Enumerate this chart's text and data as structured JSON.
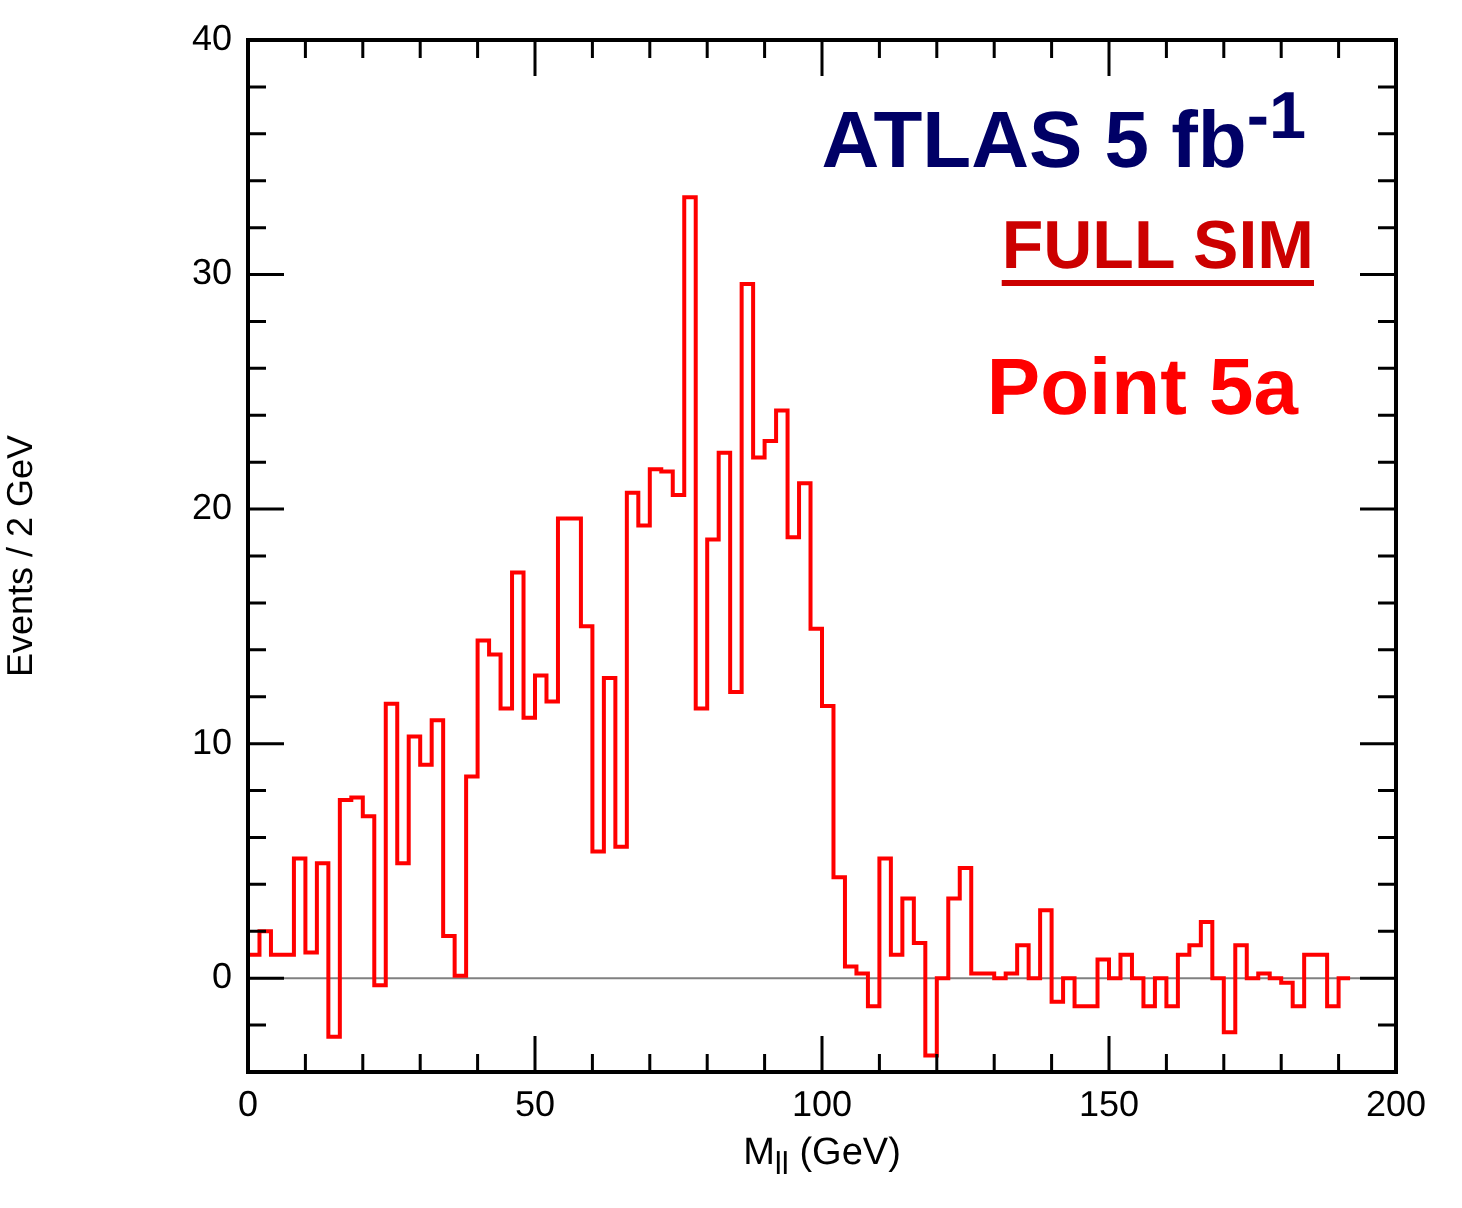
{
  "chart_data": {
    "type": "histogram",
    "xlabel": "M$_{ll}$ (GeV)",
    "ylabel": "Events / 2 GeV",
    "annotations": [
      "ATLAS 5 fb$^{-1}$",
      "FULL SIM",
      "Point 5a"
    ],
    "bins": [
      0,
      2,
      4,
      6,
      8,
      10,
      12,
      14,
      16,
      18,
      20,
      22,
      24,
      26,
      28,
      30,
      32,
      34,
      36,
      38,
      40,
      42,
      44,
      46,
      48,
      50,
      52,
      54,
      56,
      58,
      60,
      62,
      64,
      66,
      68,
      70,
      72,
      74,
      76,
      78,
      80,
      82,
      84,
      86,
      88,
      90,
      92,
      94,
      96,
      98,
      100,
      102,
      104,
      106,
      108,
      110,
      112,
      114,
      116,
      118,
      120,
      122,
      124,
      126,
      128,
      130,
      132,
      134,
      136,
      138,
      140,
      142,
      144,
      146,
      148,
      150,
      152,
      154,
      156,
      158,
      160,
      162,
      164,
      166,
      168,
      170,
      172,
      174,
      176,
      178,
      180,
      182,
      184,
      186,
      188,
      190,
      192
    ],
    "values": [
      1.0,
      2.0,
      1.0,
      1.0,
      5.1,
      1.1,
      4.9,
      -2.5,
      7.6,
      7.7,
      6.9,
      -0.3,
      11.7,
      4.9,
      10.3,
      9.1,
      11.0,
      1.8,
      0.1,
      8.6,
      14.4,
      13.8,
      11.5,
      17.3,
      11.1,
      12.9,
      11.8,
      19.6,
      19.6,
      15.0,
      5.4,
      12.8,
      5.6,
      20.7,
      19.3,
      21.7,
      21.6,
      20.6,
      33.3,
      11.5,
      18.7,
      22.4,
      12.2,
      29.6,
      22.2,
      22.9,
      24.2,
      18.8,
      21.1,
      14.9,
      11.6,
      4.3,
      0.5,
      0.2,
      -1.2,
      5.1,
      1.0,
      3.4,
      1.5,
      -3.3,
      0,
      3.4,
      4.7,
      0.2,
      0.2,
      0,
      0.2,
      1.4,
      0,
      2.9,
      -1.0,
      0,
      -1.2,
      -1.2,
      0.8,
      0,
      1.0,
      0,
      -1.2,
      0,
      -1.2,
      1.0,
      1.4,
      2.4,
      0,
      -2.3,
      1.4,
      0,
      0.2,
      0,
      -0.2,
      -1.2,
      1.0,
      1.0,
      -1.2,
      0
    ],
    "color": "#ff0000",
    "xlim": [
      0,
      200
    ],
    "xticks": [
      0,
      {
        "value": 10,
        "label": null
      },
      {
        "value": 20,
        "label": null
      },
      {
        "value": 30,
        "label": null
      },
      {
        "value": 40,
        "label": null
      },
      50,
      {
        "value": 60,
        "label": null
      },
      {
        "value": 70,
        "label": null
      },
      {
        "value": 80,
        "label": null
      },
      {
        "value": 90,
        "label": null
      },
      100,
      {
        "value": 110,
        "label": null
      },
      {
        "value": 120,
        "label": null
      },
      {
        "value": 130,
        "label": null
      },
      {
        "value": 140,
        "label": null
      },
      150,
      {
        "value": 160,
        "label": null
      },
      {
        "value": 170,
        "label": null
      },
      {
        "value": 180,
        "label": null
      },
      {
        "value": 190,
        "label": null
      },
      200
    ],
    "ylim": [
      -4,
      40
    ],
    "yticks": [
      {
        "value": -2,
        "label": null
      },
      0,
      {
        "value": 2,
        "label": null
      },
      {
        "value": 4,
        "label": null
      },
      {
        "value": 6,
        "label": null
      },
      {
        "value": 8,
        "label": null
      },
      10,
      {
        "value": 12,
        "label": null
      },
      {
        "value": 14,
        "label": null
      },
      {
        "value": 16,
        "label": null
      },
      {
        "value": 18,
        "label": null
      },
      20,
      {
        "value": 22,
        "label": null
      },
      {
        "value": 24,
        "label": null
      },
      {
        "value": 26,
        "label": null
      },
      {
        "value": 28,
        "label": null
      },
      30,
      {
        "value": 32,
        "label": null
      },
      {
        "value": 34,
        "label": null
      },
      {
        "value": 36,
        "label": null
      },
      {
        "value": 38,
        "label": null
      },
      40
    ],
    "ref_lines": [
      {
        "axis": "y",
        "value": 0,
        "color": "#808080"
      }
    ],
    "grid": false,
    "legend": false
  }
}
